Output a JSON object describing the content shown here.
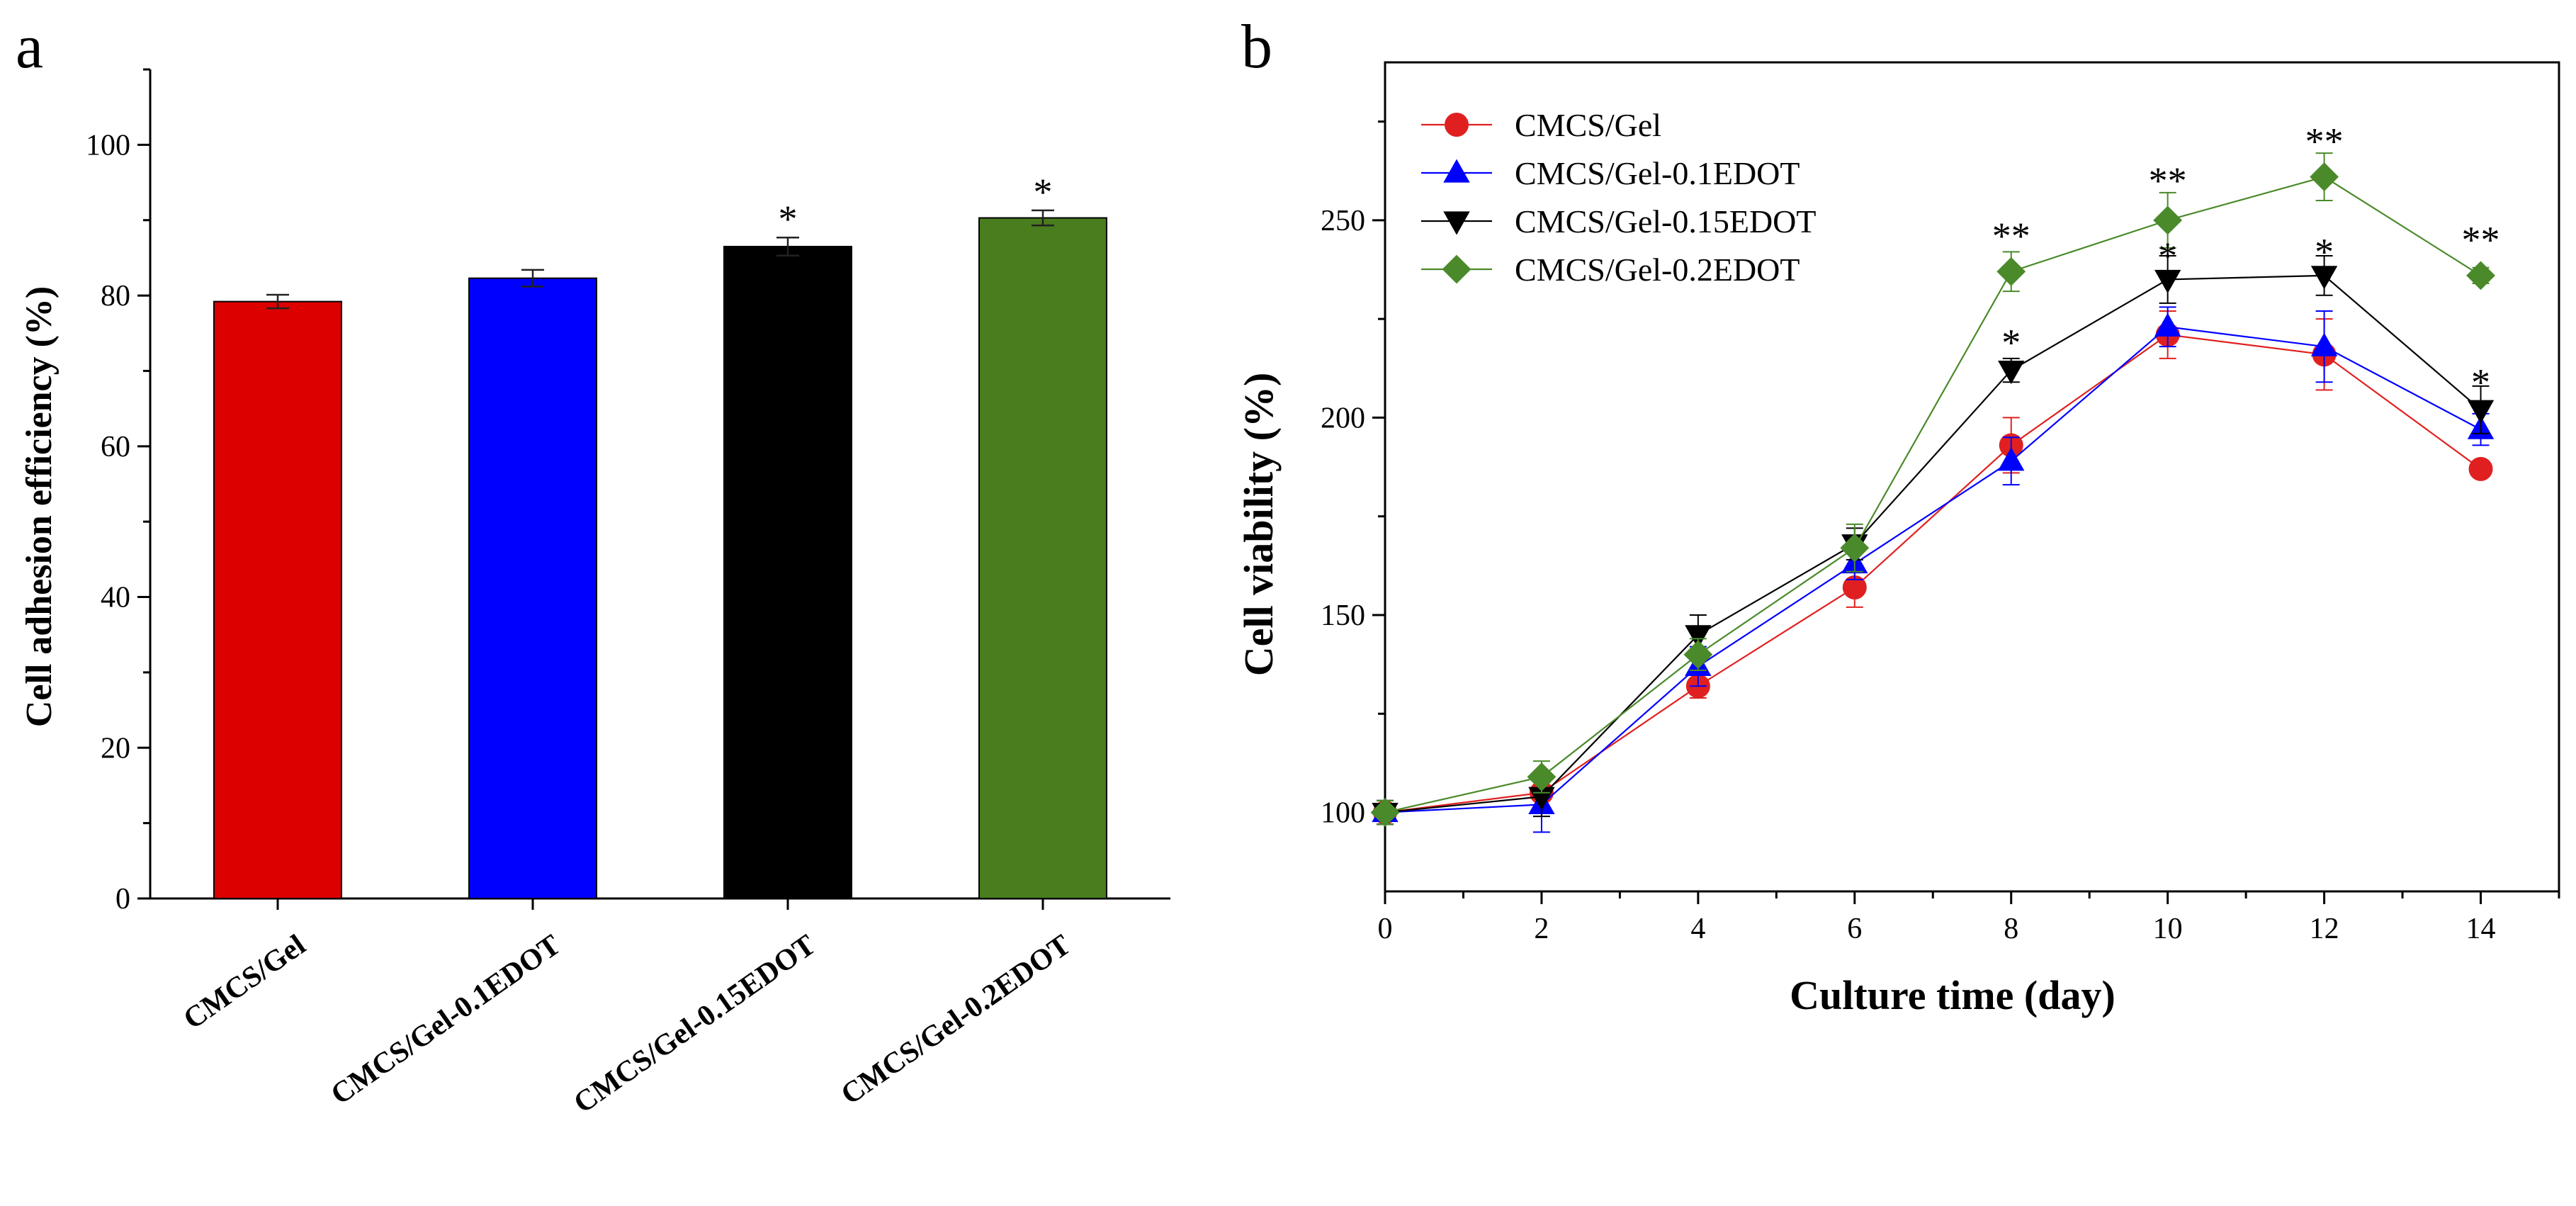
{
  "chart_data": [
    {
      "panel_label": "a",
      "type": "bar",
      "ylabel": "Cell adhesion efficiency (%)",
      "xlabel": "",
      "ylim": [
        0,
        110
      ],
      "yticks": [
        0,
        20,
        40,
        60,
        80,
        100
      ],
      "categories": [
        "CMCS/Gel",
        "CMCS/Gel-0.1EDOT",
        "CMCS/Gel-0.15EDOT",
        "CMCS/Gel-0.2EDOT"
      ],
      "values": [
        79.2,
        82.3,
        86.5,
        90.3
      ],
      "errors": [
        0.9,
        1.1,
        1.2,
        1.0
      ],
      "colors": [
        "#dd0000",
        "#0000ff",
        "#000000",
        "#4a7d1e"
      ],
      "significance": [
        "",
        "",
        "*",
        "*"
      ],
      "grid": false,
      "legend": "none"
    },
    {
      "panel_label": "b",
      "type": "line",
      "xlabel": "Culture time (day)",
      "ylabel": "Cell viability (%)",
      "xlim": [
        0,
        15
      ],
      "ylim": [
        80,
        290
      ],
      "xticks": [
        0,
        2,
        4,
        6,
        8,
        10,
        12,
        14
      ],
      "yticks": [
        100,
        150,
        200,
        250
      ],
      "x": [
        0,
        2,
        4,
        6,
        8,
        10,
        12,
        14
      ],
      "series": [
        {
          "name": "CMCS/Gel",
          "color": "#e02020",
          "marker": "circle",
          "values": [
            100,
            105,
            132,
            157,
            193,
            221,
            216,
            187
          ],
          "errors": [
            3,
            5,
            3,
            5,
            7,
            6,
            9,
            2
          ]
        },
        {
          "name": "CMCS/Gel-0.1EDOT",
          "color": "#0000ff",
          "marker": "triangle-up",
          "values": [
            100,
            102,
            137,
            163,
            189,
            223,
            218,
            197
          ],
          "errors": [
            3,
            7,
            5,
            4,
            6,
            5,
            9,
            4
          ]
        },
        {
          "name": "CMCS/Gel-0.15EDOT",
          "color": "#000000",
          "marker": "triangle-down",
          "values": [
            100,
            104,
            145,
            168,
            212,
            235,
            236,
            202
          ],
          "errors": [
            3,
            5,
            5,
            4,
            3,
            6,
            5,
            6
          ]
        },
        {
          "name": "CMCS/Gel-0.2EDOT",
          "color": "#4a8a2a",
          "marker": "diamond",
          "values": [
            100,
            109,
            140,
            167,
            237,
            250,
            261,
            236
          ],
          "errors": [
            3,
            4,
            4,
            6,
            5,
            7,
            6,
            2
          ]
        }
      ],
      "annotations": [
        {
          "x": 8,
          "y": 246,
          "text": "**"
        },
        {
          "x": 8,
          "y": 219,
          "text": "*"
        },
        {
          "x": 10,
          "y": 260,
          "text": "**"
        },
        {
          "x": 10,
          "y": 241,
          "text": "*"
        },
        {
          "x": 12,
          "y": 270,
          "text": "**"
        },
        {
          "x": 12,
          "y": 242,
          "text": "*"
        },
        {
          "x": 14,
          "y": 245,
          "text": "**"
        },
        {
          "x": 14,
          "y": 209,
          "text": "*"
        }
      ],
      "grid": false,
      "legend": "top-left"
    }
  ]
}
